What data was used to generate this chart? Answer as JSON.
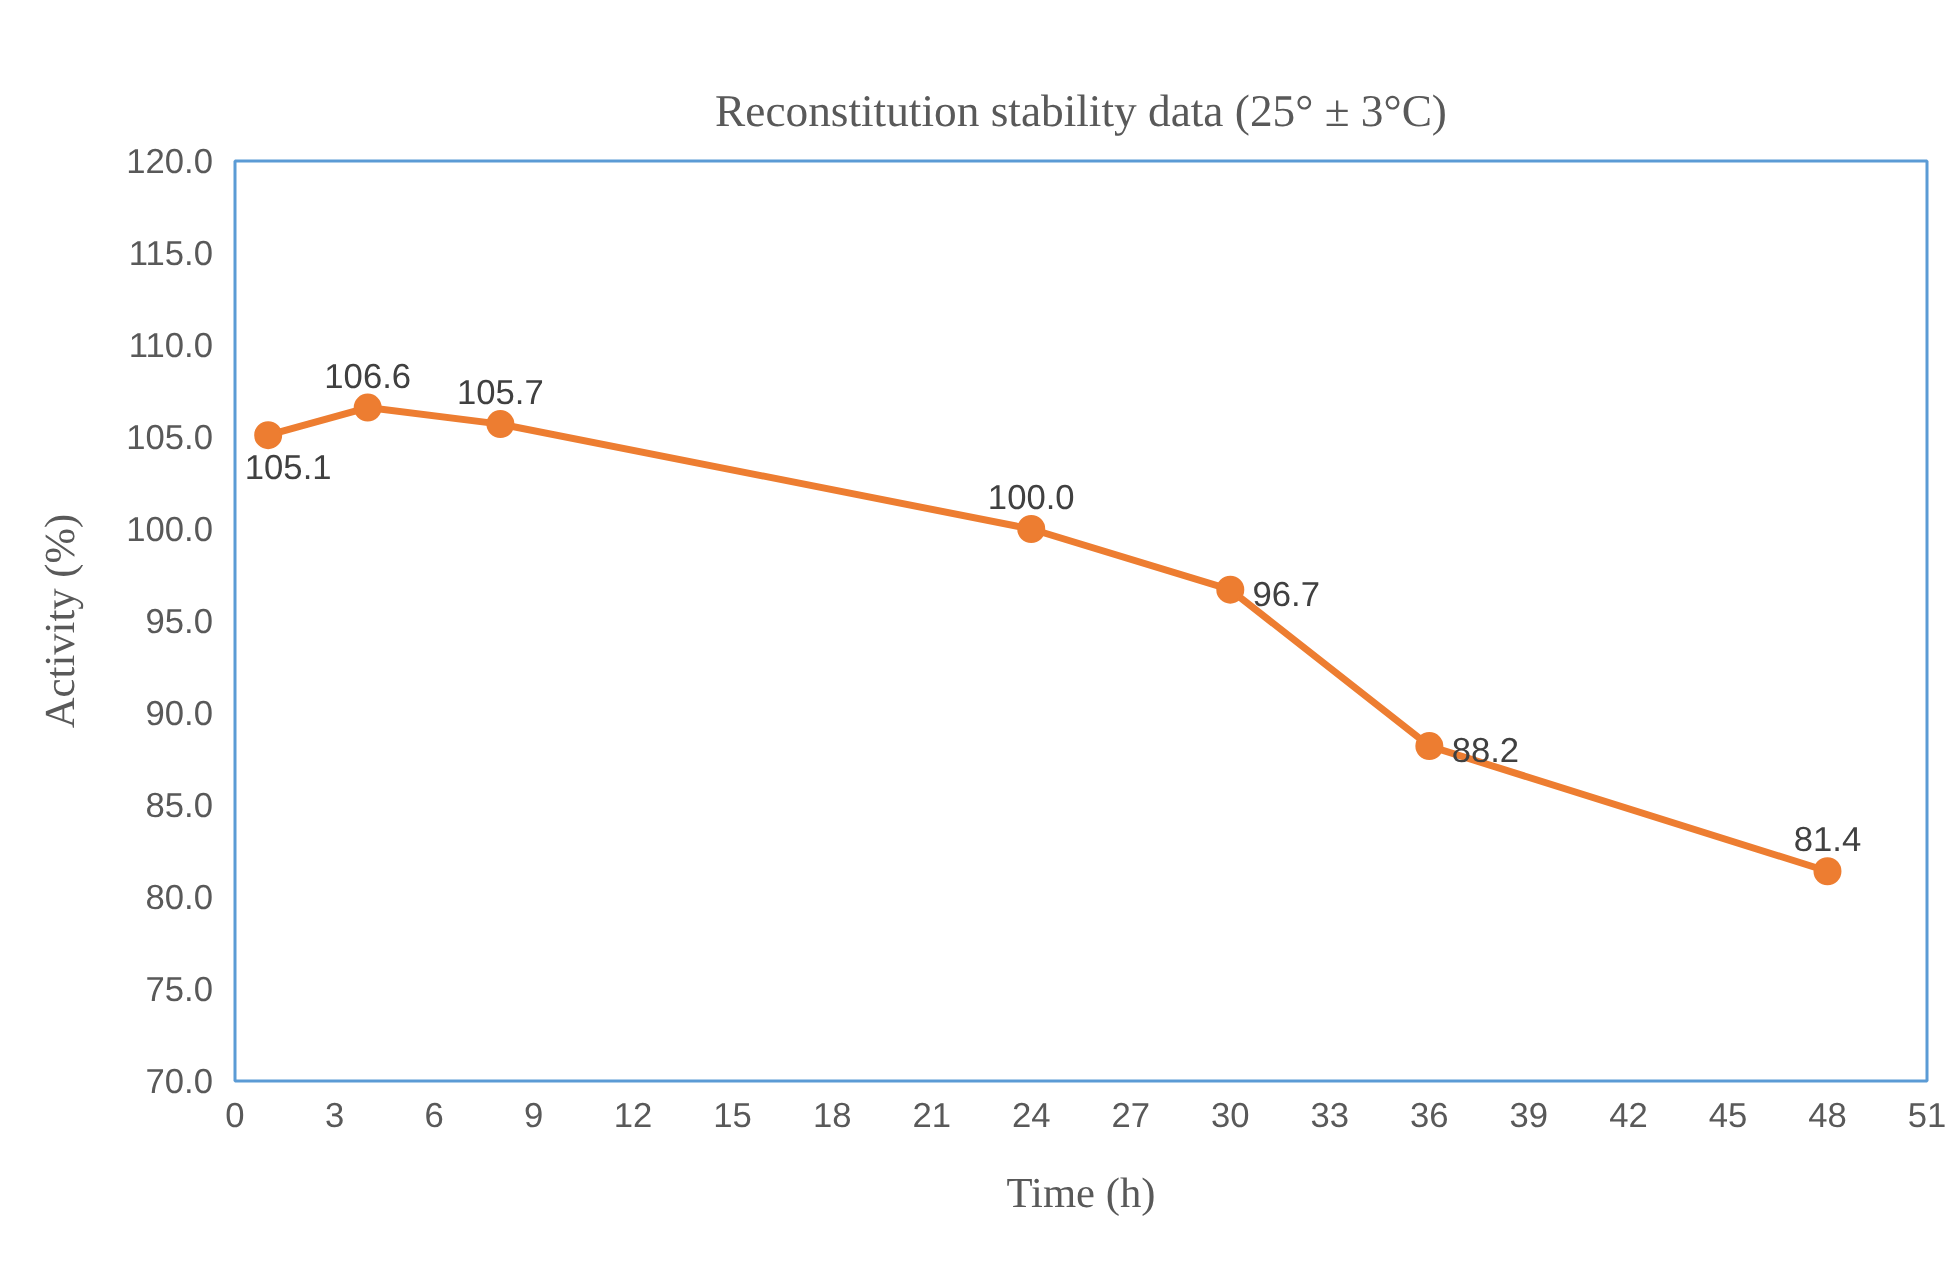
{
  "chart_data": {
    "type": "line",
    "title": "Reconstitution stability data (25° ± 3°C)",
    "xlabel": "Time (h)",
    "ylabel": "Activity (%)",
    "x": [
      1,
      4,
      8,
      24,
      30,
      36,
      48
    ],
    "series": [
      {
        "color": "#ed7d31",
        "values": [
          105.1,
          106.6,
          105.7,
          100.0,
          96.7,
          88.2,
          81.4
        ],
        "value_labels": [
          "105.1",
          "106.6",
          "105.7",
          "100.0",
          "96.7",
          "88.2",
          "81.4"
        ]
      }
    ],
    "xlim": [
      0,
      51
    ],
    "xticks": [
      0,
      3,
      6,
      9,
      12,
      15,
      18,
      21,
      24,
      27,
      30,
      33,
      36,
      39,
      42,
      45,
      48,
      51
    ],
    "ylim": [
      70,
      120
    ],
    "yticks": [
      {
        "value": 70,
        "label": "70.0"
      },
      {
        "value": 75,
        "label": "75.0"
      },
      {
        "value": 80,
        "label": "80.0"
      },
      {
        "value": 85,
        "label": "85.0"
      },
      {
        "value": 90,
        "label": "90.0"
      },
      {
        "value": 95,
        "label": "95.0"
      },
      {
        "value": 100,
        "label": "100.0"
      },
      {
        "value": 105,
        "label": "105.0"
      },
      {
        "value": 110,
        "label": "110.0"
      },
      {
        "value": 115,
        "label": "115.0"
      },
      {
        "value": 120,
        "label": "120.0"
      }
    ],
    "grid": false,
    "marker": "circle",
    "line_style": "solid"
  }
}
